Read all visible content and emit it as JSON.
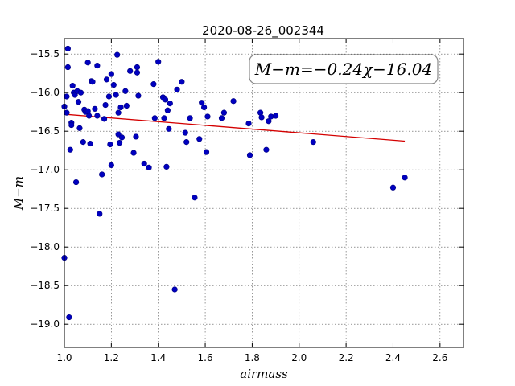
{
  "chart_data": {
    "type": "scatter",
    "title": "2020-08-26_002344",
    "xlabel": "airmass",
    "ylabel": "M−m",
    "xlim": [
      1.0,
      2.7
    ],
    "ylim": [
      -19.3,
      -15.3
    ],
    "y_inverted": true,
    "grid": true,
    "x_ticks": [
      1.0,
      1.2,
      1.4,
      1.6,
      1.8,
      2.0,
      2.2,
      2.4,
      2.6
    ],
    "x_tick_labels": [
      "1.0",
      "1.2",
      "1.4",
      "1.6",
      "1.8",
      "2.0",
      "2.2",
      "2.4",
      "2.6"
    ],
    "y_ticks": [
      -15.5,
      -16.0,
      -16.5,
      -17.0,
      -17.5,
      -18.0,
      -18.5,
      -19.0
    ],
    "y_tick_labels": [
      "−15.5",
      "−16.0",
      "−16.5",
      "−17.0",
      "−17.5",
      "−18.0",
      "−18.5",
      "−19.0"
    ],
    "annotation": "M−m=−0.24χ−16.04",
    "fit_line": {
      "slope": -0.24,
      "intercept": -16.04,
      "x_range": [
        1.0,
        2.45
      ],
      "color": "#d40000"
    },
    "marker_color": "#0000c0",
    "series": [
      {
        "points": [
          [
            1.0,
            -18.14
          ],
          [
            1.0,
            -16.18
          ],
          [
            1.01,
            -16.05
          ],
          [
            1.01,
            -16.26
          ],
          [
            1.015,
            -15.67
          ],
          [
            1.015,
            -15.43
          ],
          [
            1.025,
            -16.74
          ],
          [
            1.03,
            -16.39
          ],
          [
            1.03,
            -16.42
          ],
          [
            1.035,
            -15.91
          ],
          [
            1.04,
            -16.0
          ],
          [
            1.045,
            -16.03
          ],
          [
            1.05,
            -17.16
          ],
          [
            1.055,
            -15.98
          ],
          [
            1.06,
            -16.12
          ],
          [
            1.065,
            -16.46
          ],
          [
            1.07,
            -16.0
          ],
          [
            1.08,
            -16.64
          ],
          [
            1.085,
            -16.22
          ],
          [
            1.09,
            -16.25
          ],
          [
            1.1,
            -15.61
          ],
          [
            1.1,
            -16.24
          ],
          [
            1.105,
            -16.3
          ],
          [
            1.11,
            -16.66
          ],
          [
            1.115,
            -15.85
          ],
          [
            1.12,
            -15.86
          ],
          [
            1.13,
            -16.21
          ],
          [
            1.14,
            -15.65
          ],
          [
            1.14,
            -16.3
          ],
          [
            1.15,
            -17.57
          ],
          [
            1.16,
            -17.06
          ],
          [
            1.17,
            -16.34
          ],
          [
            1.175,
            -16.16
          ],
          [
            1.18,
            -15.83
          ],
          [
            1.19,
            -16.05
          ],
          [
            1.195,
            -16.67
          ],
          [
            1.2,
            -15.76
          ],
          [
            1.2,
            -16.94
          ],
          [
            1.21,
            -15.9
          ],
          [
            1.22,
            -16.03
          ],
          [
            1.225,
            -15.51
          ],
          [
            1.23,
            -16.26
          ],
          [
            1.23,
            -16.54
          ],
          [
            1.235,
            -16.65
          ],
          [
            1.24,
            -16.19
          ],
          [
            1.245,
            -16.58
          ],
          [
            1.26,
            -15.98
          ],
          [
            1.265,
            -16.17
          ],
          [
            1.28,
            -15.72
          ],
          [
            1.295,
            -16.78
          ],
          [
            1.305,
            -16.57
          ],
          [
            1.31,
            -15.67
          ],
          [
            1.31,
            -15.74
          ],
          [
            1.315,
            -16.04
          ],
          [
            1.34,
            -16.92
          ],
          [
            1.36,
            -16.97
          ],
          [
            1.38,
            -15.89
          ],
          [
            1.385,
            -16.33
          ],
          [
            1.4,
            -15.6
          ],
          [
            1.42,
            -16.06
          ],
          [
            1.425,
            -16.33
          ],
          [
            1.43,
            -16.09
          ],
          [
            1.435,
            -16.96
          ],
          [
            1.44,
            -16.23
          ],
          [
            1.445,
            -16.47
          ],
          [
            1.45,
            -16.14
          ],
          [
            1.47,
            -18.55
          ],
          [
            1.48,
            -15.96
          ],
          [
            1.5,
            -15.86
          ],
          [
            1.515,
            -16.52
          ],
          [
            1.52,
            -16.64
          ],
          [
            1.535,
            -16.33
          ],
          [
            1.555,
            -17.36
          ],
          [
            1.575,
            -16.6
          ],
          [
            1.585,
            -16.13
          ],
          [
            1.595,
            -16.19
          ],
          [
            1.605,
            -16.77
          ],
          [
            1.61,
            -16.31
          ],
          [
            1.67,
            -16.33
          ],
          [
            1.68,
            -16.26
          ],
          [
            1.72,
            -16.11
          ],
          [
            1.785,
            -16.4
          ],
          [
            1.79,
            -16.81
          ],
          [
            1.835,
            -16.26
          ],
          [
            1.84,
            -16.32
          ],
          [
            1.86,
            -16.74
          ],
          [
            1.87,
            -16.37
          ],
          [
            1.88,
            -16.31
          ],
          [
            1.9,
            -16.3
          ],
          [
            2.06,
            -16.64
          ],
          [
            2.4,
            -17.23
          ],
          [
            2.45,
            -17.1
          ],
          [
            1.02,
            -18.91
          ]
        ]
      }
    ]
  }
}
